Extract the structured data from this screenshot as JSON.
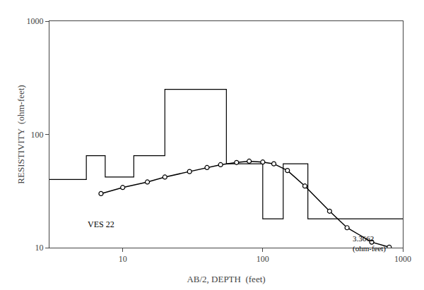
{
  "chart_data": {
    "type": "line",
    "xlabel": "AB/2, DEPTH  (feet)",
    "ylabel": "RESISTIVITY  (ohm-feet)",
    "log": true,
    "grid": false,
    "xlim": [
      3.0,
      1000.0
    ],
    "ylim": [
      10.0,
      1000.0
    ],
    "xticks": [
      10,
      100,
      1000
    ],
    "yticks": [
      10,
      100,
      1000
    ],
    "series": [
      {
        "x": [
          3.0,
          5.5,
          5.5,
          7.5,
          7.5,
          12.0,
          12.0,
          20.0,
          20.0,
          55.0,
          55.0,
          100.0,
          100.0,
          140.0,
          140.0,
          210.0,
          210.0,
          1000.0
        ],
        "values": [
          40.0,
          40.0,
          65.0,
          65.0,
          42.0,
          42.0,
          65.0,
          65.0,
          250.0,
          250.0,
          55.0,
          55.0,
          18.0,
          18.0,
          55.0,
          55.0,
          18.0,
          18.0
        ],
        "color": "#000000"
      },
      {
        "x": [
          7.0,
          10.0,
          15.0,
          20.0,
          30.0,
          40.0,
          50.0,
          65.0,
          80.0,
          100.0,
          120.0,
          150.0,
          200.0,
          300.0,
          400.0,
          600.0,
          800.0
        ],
        "values": [
          30.0,
          34.0,
          38.0,
          42.0,
          47.0,
          51.0,
          54.0,
          56.5,
          58.0,
          57.0,
          55.0,
          48.0,
          35.0,
          21.0,
          15.0,
          11.2,
          10.1
        ],
        "color": "#000000",
        "marker": "circle"
      }
    ],
    "annotations": [
      {
        "text": "VES 22",
        "x": 5.5,
        "y": 16.0
      },
      {
        "text": "3.3662\n(ohm-feet)",
        "x": 430,
        "y": 13.5,
        "arrow_x": 780,
        "arrow_y": 10.1
      }
    ]
  }
}
